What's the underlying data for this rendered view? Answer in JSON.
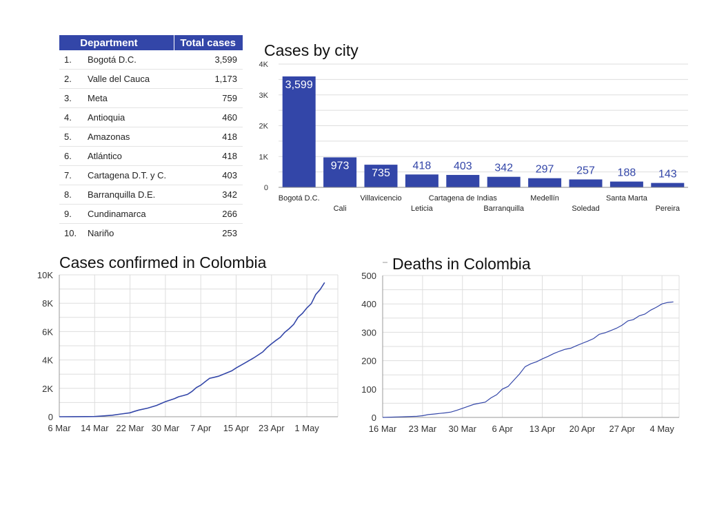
{
  "table": {
    "headers": [
      "Department",
      "Total cases"
    ],
    "rows": [
      {
        "rank": "1.",
        "name": "Bogotá D.C.",
        "value": "3,599"
      },
      {
        "rank": "2.",
        "name": "Valle del Cauca",
        "value": "1,173"
      },
      {
        "rank": "3.",
        "name": "Meta",
        "value": "759"
      },
      {
        "rank": "4.",
        "name": "Antioquia",
        "value": "460"
      },
      {
        "rank": "5.",
        "name": "Amazonas",
        "value": "418"
      },
      {
        "rank": "6.",
        "name": "Atlántico",
        "value": "418"
      },
      {
        "rank": "7.",
        "name": "Cartagena D.T. y C.",
        "value": "403"
      },
      {
        "rank": "8.",
        "name": "Barranquilla D.E.",
        "value": "342"
      },
      {
        "rank": "9.",
        "name": "Cundinamarca",
        "value": "266"
      },
      {
        "rank": "10.",
        "name": "Nariño",
        "value": "253"
      }
    ]
  },
  "colors": {
    "accent": "#3346a8",
    "grid": "#dddddd"
  },
  "chart_data": [
    {
      "type": "bar",
      "title": "Cases by city",
      "categories": [
        "Bogotá D.C.",
        "Cali",
        "Villavicencio",
        "Leticia",
        "Cartagena de Indias",
        "Barranquilla",
        "Medellín",
        "Soledad",
        "Santa Marta",
        "Pereira"
      ],
      "values": [
        3599,
        973,
        735,
        418,
        403,
        342,
        297,
        257,
        188,
        143
      ],
      "value_labels": [
        "3,599",
        "973",
        "735",
        "418",
        "403",
        "342",
        "297",
        "257",
        "188",
        "143"
      ],
      "ylim": [
        0,
        4000
      ],
      "yticks": [
        "0",
        "1K",
        "2K",
        "3K",
        "4K"
      ],
      "grid": true
    },
    {
      "type": "line",
      "title": "Cases confirmed in Colombia",
      "x_start": "6 Mar",
      "xticks": [
        "6 Mar",
        "14 Mar",
        "22 Mar",
        "30 Mar",
        "7 Apr",
        "15 Apr",
        "23 Apr",
        "1 May"
      ],
      "yticks": [
        "0",
        "2K",
        "4K",
        "6K",
        "8K",
        "10K"
      ],
      "ylim": [
        0,
        10000
      ],
      "x_day_range": [
        0,
        63
      ],
      "points": [
        [
          0,
          1
        ],
        [
          3,
          3
        ],
        [
          6,
          9
        ],
        [
          8,
          16
        ],
        [
          10,
          57
        ],
        [
          12,
          108
        ],
        [
          14,
          196
        ],
        [
          16,
          277
        ],
        [
          17,
          378
        ],
        [
          18,
          470
        ],
        [
          20,
          608
        ],
        [
          22,
          798
        ],
        [
          24,
          1065
        ],
        [
          26,
          1267
        ],
        [
          27,
          1406
        ],
        [
          28,
          1485
        ],
        [
          29,
          1579
        ],
        [
          30,
          1780
        ],
        [
          31,
          2054
        ],
        [
          32,
          2223
        ],
        [
          33,
          2473
        ],
        [
          34,
          2709
        ],
        [
          35,
          2776
        ],
        [
          36,
          2852
        ],
        [
          37,
          2979
        ],
        [
          38,
          3105
        ],
        [
          39,
          3233
        ],
        [
          40,
          3439
        ],
        [
          42,
          3792
        ],
        [
          44,
          4149
        ],
        [
          46,
          4561
        ],
        [
          47,
          4881
        ],
        [
          48,
          5142
        ],
        [
          49,
          5379
        ],
        [
          50,
          5597
        ],
        [
          51,
          5949
        ],
        [
          52,
          6211
        ],
        [
          53,
          6507
        ],
        [
          54,
          7006
        ],
        [
          55,
          7285
        ],
        [
          56,
          7668
        ],
        [
          57,
          7973
        ],
        [
          58,
          8613
        ],
        [
          59,
          8959
        ],
        [
          60,
          9456
        ]
      ],
      "line_color": "#3346a8",
      "grid": true
    },
    {
      "type": "line",
      "title": "Deaths in Colombia",
      "x_start": "16 Mar",
      "xticks": [
        "16 Mar",
        "23 Mar",
        "30 Mar",
        "6 Apr",
        "13 Apr",
        "20 Apr",
        "27 Apr",
        "4 May"
      ],
      "yticks": [
        "0",
        "100",
        "200",
        "300",
        "400",
        "500"
      ],
      "ylim": [
        0,
        500
      ],
      "x_day_range": [
        0,
        52
      ],
      "points": [
        [
          0,
          0
        ],
        [
          3,
          2
        ],
        [
          6,
          4
        ],
        [
          7,
          6
        ],
        [
          8,
          10
        ],
        [
          9,
          12
        ],
        [
          10,
          14
        ],
        [
          11,
          16
        ],
        [
          12,
          19
        ],
        [
          13,
          25
        ],
        [
          14,
          32
        ],
        [
          15,
          39
        ],
        [
          16,
          46
        ],
        [
          17,
          50
        ],
        [
          18,
          54
        ],
        [
          19,
          69
        ],
        [
          20,
          80
        ],
        [
          21,
          100
        ],
        [
          22,
          109
        ],
        [
          23,
          131
        ],
        [
          24,
          153
        ],
        [
          25,
          179
        ],
        [
          26,
          189
        ],
        [
          27,
          196
        ],
        [
          28,
          206
        ],
        [
          29,
          215
        ],
        [
          30,
          225
        ],
        [
          31,
          233
        ],
        [
          32,
          240
        ],
        [
          33,
          244
        ],
        [
          34,
          253
        ],
        [
          35,
          261
        ],
        [
          36,
          269
        ],
        [
          37,
          278
        ],
        [
          38,
          293
        ],
        [
          39,
          298
        ],
        [
          40,
          306
        ],
        [
          41,
          314
        ],
        [
          42,
          325
        ],
        [
          43,
          340
        ],
        [
          44,
          345
        ],
        [
          45,
          358
        ],
        [
          46,
          364
        ],
        [
          47,
          378
        ],
        [
          48,
          388
        ],
        [
          49,
          400
        ],
        [
          50,
          405
        ],
        [
          51,
          407
        ]
      ],
      "line_color": "#3346a8",
      "grid": true
    }
  ]
}
